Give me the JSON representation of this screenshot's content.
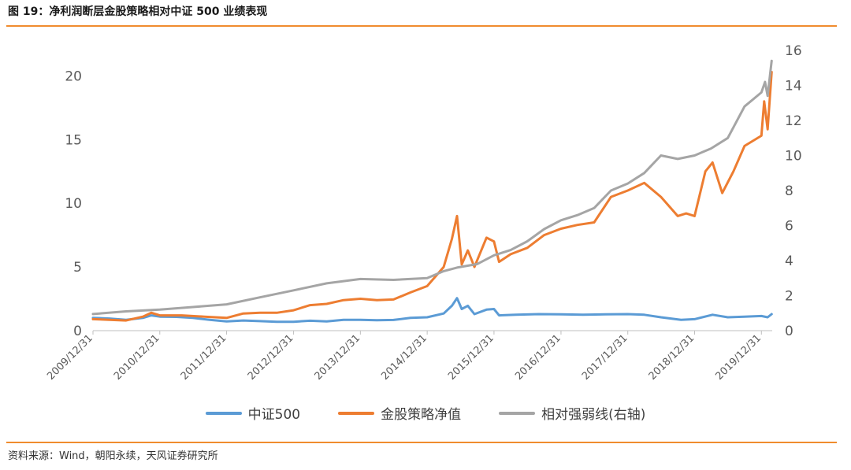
{
  "title": "图 19：净利润断层金股策略相对中证 500 业绩表现",
  "source": "资料来源：Wind，朝阳永续，天风证券研究所",
  "chart_data": {
    "type": "line",
    "x": [
      "2009/12/31",
      "2010/12/31",
      "2011/12/31",
      "2012/12/31",
      "2013/12/31",
      "2014/12/31",
      "2015/12/31",
      "2016/12/31",
      "2017/12/31",
      "2018/12/31",
      "2019/12/31"
    ],
    "xlim": [
      "2009/12/31",
      "2020/02/28"
    ],
    "y_left_lim": [
      0,
      22
    ],
    "y_left_ticks": [
      0,
      5,
      10,
      15,
      20
    ],
    "y_right_lim": [
      0,
      16
    ],
    "y_right_ticks": [
      0,
      2,
      4,
      6,
      8,
      10,
      12,
      14,
      16
    ],
    "grid": false,
    "legend_position": "bottom",
    "series": [
      {
        "name": "中证500",
        "axis": "left",
        "color": "#5b9bd5",
        "points": [
          [
            "2009/12/31",
            1.0
          ],
          [
            "2010/03/31",
            0.95
          ],
          [
            "2010/06/30",
            0.85
          ],
          [
            "2010/09/30",
            1.0
          ],
          [
            "2010/11/15",
            1.2
          ],
          [
            "2010/12/31",
            1.1
          ],
          [
            "2011/03/31",
            1.08
          ],
          [
            "2011/06/30",
            1.0
          ],
          [
            "2011/09/30",
            0.85
          ],
          [
            "2011/12/31",
            0.72
          ],
          [
            "2012/03/31",
            0.8
          ],
          [
            "2012/06/30",
            0.75
          ],
          [
            "2012/09/30",
            0.7
          ],
          [
            "2012/12/31",
            0.7
          ],
          [
            "2013/03/31",
            0.78
          ],
          [
            "2013/06/30",
            0.72
          ],
          [
            "2013/09/30",
            0.85
          ],
          [
            "2013/12/31",
            0.85
          ],
          [
            "2014/03/31",
            0.82
          ],
          [
            "2014/06/30",
            0.84
          ],
          [
            "2014/09/30",
            1.0
          ],
          [
            "2014/12/31",
            1.05
          ],
          [
            "2015/03/31",
            1.35
          ],
          [
            "2015/05/15",
            1.95
          ],
          [
            "2015/06/12",
            2.55
          ],
          [
            "2015/07/08",
            1.7
          ],
          [
            "2015/08/10",
            1.95
          ],
          [
            "2015/09/15",
            1.3
          ],
          [
            "2015/11/20",
            1.65
          ],
          [
            "2015/12/31",
            1.7
          ],
          [
            "2016/01/28",
            1.2
          ],
          [
            "2016/04/30",
            1.25
          ],
          [
            "2016/08/31",
            1.3
          ],
          [
            "2016/12/31",
            1.28
          ],
          [
            "2017/04/30",
            1.25
          ],
          [
            "2017/08/31",
            1.28
          ],
          [
            "2017/12/31",
            1.3
          ],
          [
            "2018/03/31",
            1.25
          ],
          [
            "2018/06/30",
            1.05
          ],
          [
            "2018/10/18",
            0.85
          ],
          [
            "2018/12/31",
            0.9
          ],
          [
            "2019/04/08",
            1.25
          ],
          [
            "2019/06/30",
            1.05
          ],
          [
            "2019/09/30",
            1.1
          ],
          [
            "2019/12/31",
            1.15
          ],
          [
            "2020/02/03",
            1.05
          ],
          [
            "2020/02/25",
            1.3
          ]
        ]
      },
      {
        "name": "金股策略净值",
        "axis": "left",
        "color": "#ed7d31",
        "points": [
          [
            "2009/12/31",
            0.9
          ],
          [
            "2010/03/31",
            0.85
          ],
          [
            "2010/06/30",
            0.8
          ],
          [
            "2010/09/30",
            1.1
          ],
          [
            "2010/11/15",
            1.4
          ],
          [
            "2010/12/31",
            1.2
          ],
          [
            "2011/04/30",
            1.2
          ],
          [
            "2011/08/31",
            1.1
          ],
          [
            "2011/12/31",
            1.0
          ],
          [
            "2012/03/31",
            1.35
          ],
          [
            "2012/06/30",
            1.4
          ],
          [
            "2012/09/30",
            1.4
          ],
          [
            "2012/12/31",
            1.6
          ],
          [
            "2013/03/31",
            2.0
          ],
          [
            "2013/06/30",
            2.1
          ],
          [
            "2013/09/30",
            2.4
          ],
          [
            "2013/12/31",
            2.5
          ],
          [
            "2014/03/31",
            2.4
          ],
          [
            "2014/06/30",
            2.45
          ],
          [
            "2014/09/30",
            3.0
          ],
          [
            "2014/12/31",
            3.5
          ],
          [
            "2015/03/31",
            5.0
          ],
          [
            "2015/05/15",
            7.2
          ],
          [
            "2015/06/12",
            9.0
          ],
          [
            "2015/07/08",
            5.2
          ],
          [
            "2015/08/10",
            6.3
          ],
          [
            "2015/09/15",
            5.0
          ],
          [
            "2015/11/20",
            7.3
          ],
          [
            "2015/12/31",
            7.0
          ],
          [
            "2016/01/28",
            5.4
          ],
          [
            "2016/03/31",
            6.0
          ],
          [
            "2016/06/30",
            6.5
          ],
          [
            "2016/09/30",
            7.5
          ],
          [
            "2016/12/31",
            8.0
          ],
          [
            "2017/03/31",
            8.3
          ],
          [
            "2017/06/30",
            8.5
          ],
          [
            "2017/09/30",
            10.5
          ],
          [
            "2017/12/31",
            11.0
          ],
          [
            "2018/03/31",
            11.6
          ],
          [
            "2018/06/30",
            10.5
          ],
          [
            "2018/09/30",
            9.0
          ],
          [
            "2018/11/15",
            9.2
          ],
          [
            "2018/12/31",
            9.0
          ],
          [
            "2019/02/28",
            12.5
          ],
          [
            "2019/04/08",
            13.2
          ],
          [
            "2019/05/31",
            10.8
          ],
          [
            "2019/07/31",
            12.5
          ],
          [
            "2019/09/30",
            14.5
          ],
          [
            "2019/12/31",
            15.3
          ],
          [
            "2020/01/15",
            18.0
          ],
          [
            "2020/02/03",
            15.8
          ],
          [
            "2020/02/25",
            20.3
          ]
        ]
      },
      {
        "name": "相对强弱线(右轴)",
        "axis": "right",
        "color": "#a5a5a5",
        "points": [
          [
            "2009/12/31",
            0.95
          ],
          [
            "2010/06/30",
            1.1
          ],
          [
            "2010/12/31",
            1.2
          ],
          [
            "2011/06/30",
            1.35
          ],
          [
            "2011/12/31",
            1.5
          ],
          [
            "2012/06/30",
            1.9
          ],
          [
            "2012/12/31",
            2.3
          ],
          [
            "2013/06/30",
            2.7
          ],
          [
            "2013/12/31",
            2.95
          ],
          [
            "2014/06/30",
            2.9
          ],
          [
            "2014/12/31",
            3.0
          ],
          [
            "2015/03/31",
            3.4
          ],
          [
            "2015/06/12",
            3.6
          ],
          [
            "2015/09/30",
            3.8
          ],
          [
            "2015/12/31",
            4.3
          ],
          [
            "2016/03/31",
            4.6
          ],
          [
            "2016/06/30",
            5.1
          ],
          [
            "2016/09/30",
            5.8
          ],
          [
            "2016/12/31",
            6.3
          ],
          [
            "2017/03/31",
            6.6
          ],
          [
            "2017/06/30",
            7.0
          ],
          [
            "2017/09/30",
            8.0
          ],
          [
            "2017/12/31",
            8.4
          ],
          [
            "2018/03/31",
            9.0
          ],
          [
            "2018/06/30",
            10.0
          ],
          [
            "2018/09/30",
            9.8
          ],
          [
            "2018/12/31",
            10.0
          ],
          [
            "2019/03/31",
            10.4
          ],
          [
            "2019/06/30",
            11.0
          ],
          [
            "2019/09/30",
            12.8
          ],
          [
            "2019/12/31",
            13.6
          ],
          [
            "2020/01/20",
            14.2
          ],
          [
            "2020/02/03",
            13.4
          ],
          [
            "2020/02/25",
            15.4
          ]
        ]
      }
    ]
  }
}
